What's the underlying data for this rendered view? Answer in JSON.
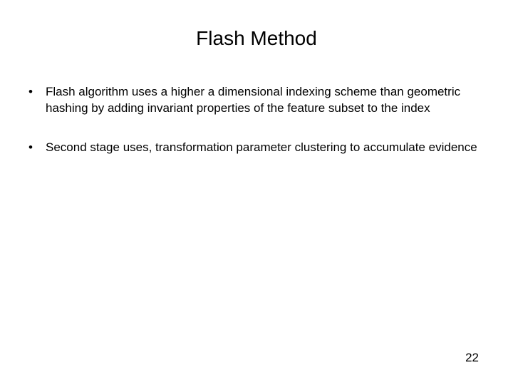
{
  "title": "Flash Method",
  "bullets": [
    {
      "marker": "•",
      "text": "Flash algorithm uses a higher a dimensional indexing scheme than geometric hashing by adding invariant properties of the feature subset to the index"
    },
    {
      "marker": "•",
      "text": "Second stage uses, transformation parameter clustering to accumulate evidence"
    }
  ],
  "page_number": "22",
  "styling": {
    "background_color": "#ffffff",
    "text_color": "#000000",
    "title_fontsize": 28,
    "body_fontsize": 17,
    "page_number_fontsize": 17,
    "font_family": "Arial"
  }
}
